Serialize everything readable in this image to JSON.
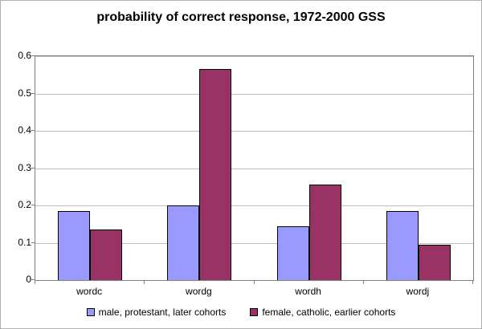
{
  "chart_data": {
    "type": "bar",
    "title": "probability of correct response, 1972-2000 GSS",
    "categories": [
      "wordc",
      "wordg",
      "wordh",
      "wordj"
    ],
    "series": [
      {
        "name": "male, protestant, later cohorts",
        "color": "#9999FF",
        "values": [
          0.185,
          0.2,
          0.145,
          0.185
        ]
      },
      {
        "name": "female, catholic, earlier cohorts",
        "color": "#993366",
        "values": [
          0.135,
          0.565,
          0.255,
          0.095
        ]
      }
    ],
    "xlabel": "",
    "ylabel": "",
    "ylim": [
      0,
      0.6
    ],
    "yticks": [
      0,
      0.1,
      0.2,
      0.3,
      0.4,
      0.5,
      0.6
    ],
    "ytick_labels": [
      "0",
      "0.1",
      "0.2",
      "0.3",
      "0.4",
      "0.5",
      "0.6"
    ],
    "grid": true,
    "legend_position": "bottom"
  },
  "colors": {
    "grid": "#c0c0c0",
    "plot_border": "#7f7f7f",
    "bar_border": "#000000",
    "background": "#ffffff"
  }
}
